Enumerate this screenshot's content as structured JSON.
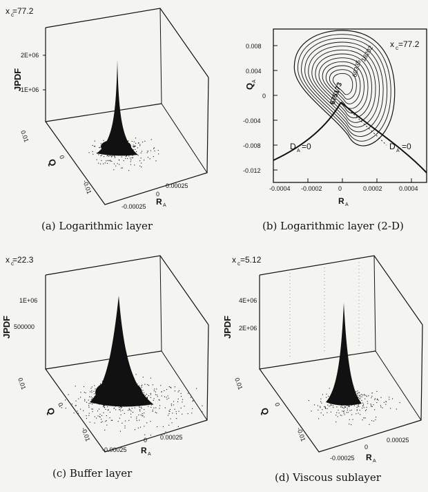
{
  "panels": [
    {
      "id": "a",
      "caption": "(a) Logarithmic layer",
      "param_label": "x",
      "param_value": "=77.2",
      "zlabel": "JPDF",
      "zticks": [
        "2E+06",
        "1E+06"
      ],
      "ylabel": "Q",
      "ylabel_sub": "A",
      "yticks": [
        "0.01",
        "0",
        "-0.01"
      ],
      "xlabel": "R",
      "xlabel_sub": "A",
      "xticks": [
        "-0.00025",
        "0",
        "0.00025"
      ]
    },
    {
      "id": "b",
      "caption": "(b) Logarithmic layer (2-D)",
      "param_label": "x",
      "param_value": "=77.2",
      "ylabel": "Q",
      "ylabel_sub": "A",
      "xlabel": "R",
      "xlabel_sub": "A",
      "xticks": [
        "-0.0004",
        "-0.0002",
        "0",
        "0.0002",
        "0.0004"
      ],
      "yticks": [
        "0.008",
        "0.004",
        "0",
        "-0.004",
        "-0.008",
        "-0.012"
      ],
      "contour_labels": [
        "18202",
        "60335",
        "675173"
      ],
      "curve_label_left": "D",
      "curve_label_left_sub": "A",
      "curve_label_left_eq": "=0",
      "curve_label_right": "D",
      "curve_label_right_sub": "A",
      "curve_label_right_eq": "=0"
    },
    {
      "id": "c",
      "caption": "(c) Buffer layer",
      "param_label": "x",
      "param_value": "=22.3",
      "zlabel": "JPDF",
      "zticks": [
        "1E+06",
        "500000"
      ],
      "ylabel": "Q",
      "ylabel_sub": "A",
      "yticks": [
        "0.01",
        "0",
        "-0.01"
      ],
      "xlabel": "R",
      "xlabel_sub": "A",
      "xticks": [
        "-0.00025",
        "0",
        "0.00025"
      ]
    },
    {
      "id": "d",
      "caption": "(d) Viscous sublayer",
      "param_label": "x",
      "param_value": "=5.12",
      "zlabel": "JPDF",
      "zticks": [
        "4E+06",
        "2E+06"
      ],
      "ylabel": "Q",
      "ylabel_sub": "A",
      "yticks": [
        "0.01",
        "0",
        "-0.01"
      ],
      "xlabel": "R",
      "xlabel_sub": "A",
      "xticks": [
        "-0.00025",
        "0",
        "0.00025"
      ]
    }
  ],
  "colors": {
    "ink": "#111111",
    "paper": "#f4f4f0"
  }
}
